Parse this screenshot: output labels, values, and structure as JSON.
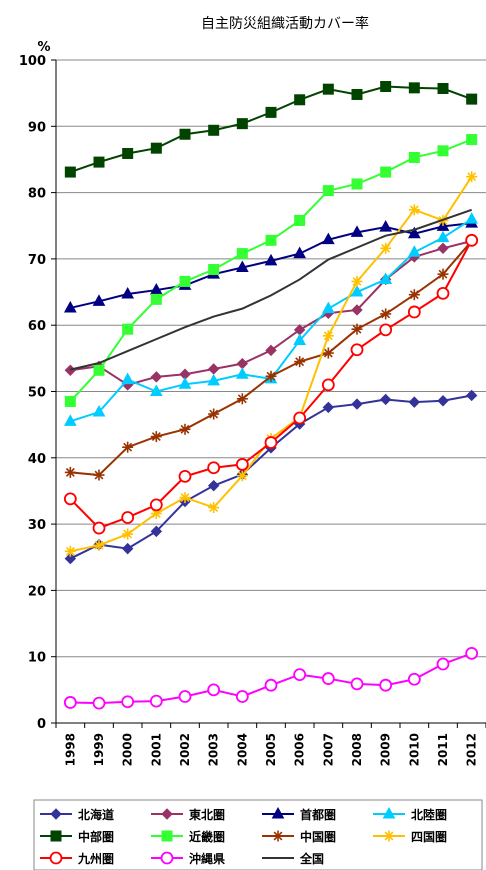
{
  "chart_data": {
    "type": "line",
    "title": "自主防災組織活動カバー率",
    "ylabel": "%",
    "ylim": [
      0,
      100
    ],
    "yticks": [
      0,
      10,
      20,
      30,
      40,
      50,
      60,
      70,
      80,
      90,
      100
    ],
    "grid": true,
    "legend_position": "bottom",
    "x": [
      "1998",
      "1999",
      "2000",
      "2001",
      "2002",
      "2003",
      "2004",
      "2005",
      "2006",
      "2007",
      "2008",
      "2009",
      "2010",
      "2011",
      "2012"
    ],
    "series": [
      {
        "name": "北海道",
        "color": "#333399",
        "marker": "diamond",
        "values": [
          24.8,
          26.9,
          26.3,
          28.9,
          33.4,
          35.8,
          37.5,
          41.5,
          45.1,
          47.6,
          48.1,
          48.8,
          48.4,
          48.6,
          49.4
        ]
      },
      {
        "name": "東北圏",
        "color": "#993366",
        "marker": "diamond",
        "values": [
          53.2,
          53.8,
          51.0,
          52.2,
          52.6,
          53.4,
          54.2,
          56.2,
          59.3,
          61.8,
          62.3,
          66.9,
          70.3,
          71.6,
          72.7
        ]
      },
      {
        "name": "首都圏",
        "color": "#000080",
        "marker": "triangle",
        "values": [
          62.6,
          63.6,
          64.7,
          65.3,
          66.0,
          67.7,
          68.7,
          69.7,
          70.8,
          72.9,
          74.0,
          74.8,
          73.8,
          74.9,
          75.4
        ]
      },
      {
        "name": "北陸圏",
        "color": "#00ccff",
        "marker": "triangle",
        "values": [
          45.5,
          46.9,
          51.8,
          50.0,
          51.1,
          51.6,
          52.6,
          51.9,
          57.7,
          62.5,
          65.0,
          66.9,
          71.0,
          73.2,
          76.0
        ]
      },
      {
        "name": "中部圏",
        "color": "#004400",
        "marker": "square",
        "values": [
          83.1,
          84.6,
          85.9,
          86.7,
          88.8,
          89.4,
          90.4,
          92.1,
          94.0,
          95.6,
          94.8,
          96.0,
          95.8,
          95.7,
          94.1
        ]
      },
      {
        "name": "近畿圏",
        "color": "#33ff33",
        "marker": "square",
        "values": [
          48.5,
          53.2,
          59.4,
          63.9,
          66.6,
          68.4,
          70.8,
          72.8,
          75.8,
          80.3,
          81.3,
          83.1,
          85.3,
          86.3,
          88.0
        ]
      },
      {
        "name": "中国圏",
        "color": "#993300",
        "marker": "star",
        "values": [
          37.8,
          37.4,
          41.6,
          43.2,
          44.3,
          46.6,
          48.9,
          52.3,
          54.5,
          55.8,
          59.4,
          61.7,
          64.6,
          67.7,
          72.7
        ]
      },
      {
        "name": "四国圏",
        "color": "#ffc000",
        "marker": "star",
        "values": [
          25.9,
          26.8,
          28.5,
          31.6,
          34.0,
          32.5,
          37.3,
          42.9,
          46.1,
          58.4,
          66.6,
          71.6,
          77.4,
          75.8,
          82.4
        ]
      },
      {
        "name": "九州圏",
        "color": "#ff0000",
        "marker": "circle",
        "values": [
          33.8,
          29.4,
          31.0,
          32.9,
          37.2,
          38.5,
          39.0,
          42.3,
          46.0,
          51.0,
          56.3,
          59.3,
          62.0,
          64.8,
          72.8
        ]
      },
      {
        "name": "沖縄県",
        "color": "#ff00ff",
        "marker": "circle",
        "values": [
          3.1,
          3.0,
          3.2,
          3.3,
          4.0,
          5.0,
          4.0,
          5.7,
          7.3,
          6.7,
          5.9,
          5.7,
          6.6,
          8.9,
          10.5
        ]
      },
      {
        "name": "全国",
        "color": "#333333",
        "marker": "none",
        "values": [
          53.3,
          54.3,
          56.1,
          57.9,
          59.7,
          61.3,
          62.5,
          64.5,
          66.9,
          69.9,
          71.7,
          73.5,
          74.4,
          75.9,
          77.4
        ]
      }
    ]
  }
}
